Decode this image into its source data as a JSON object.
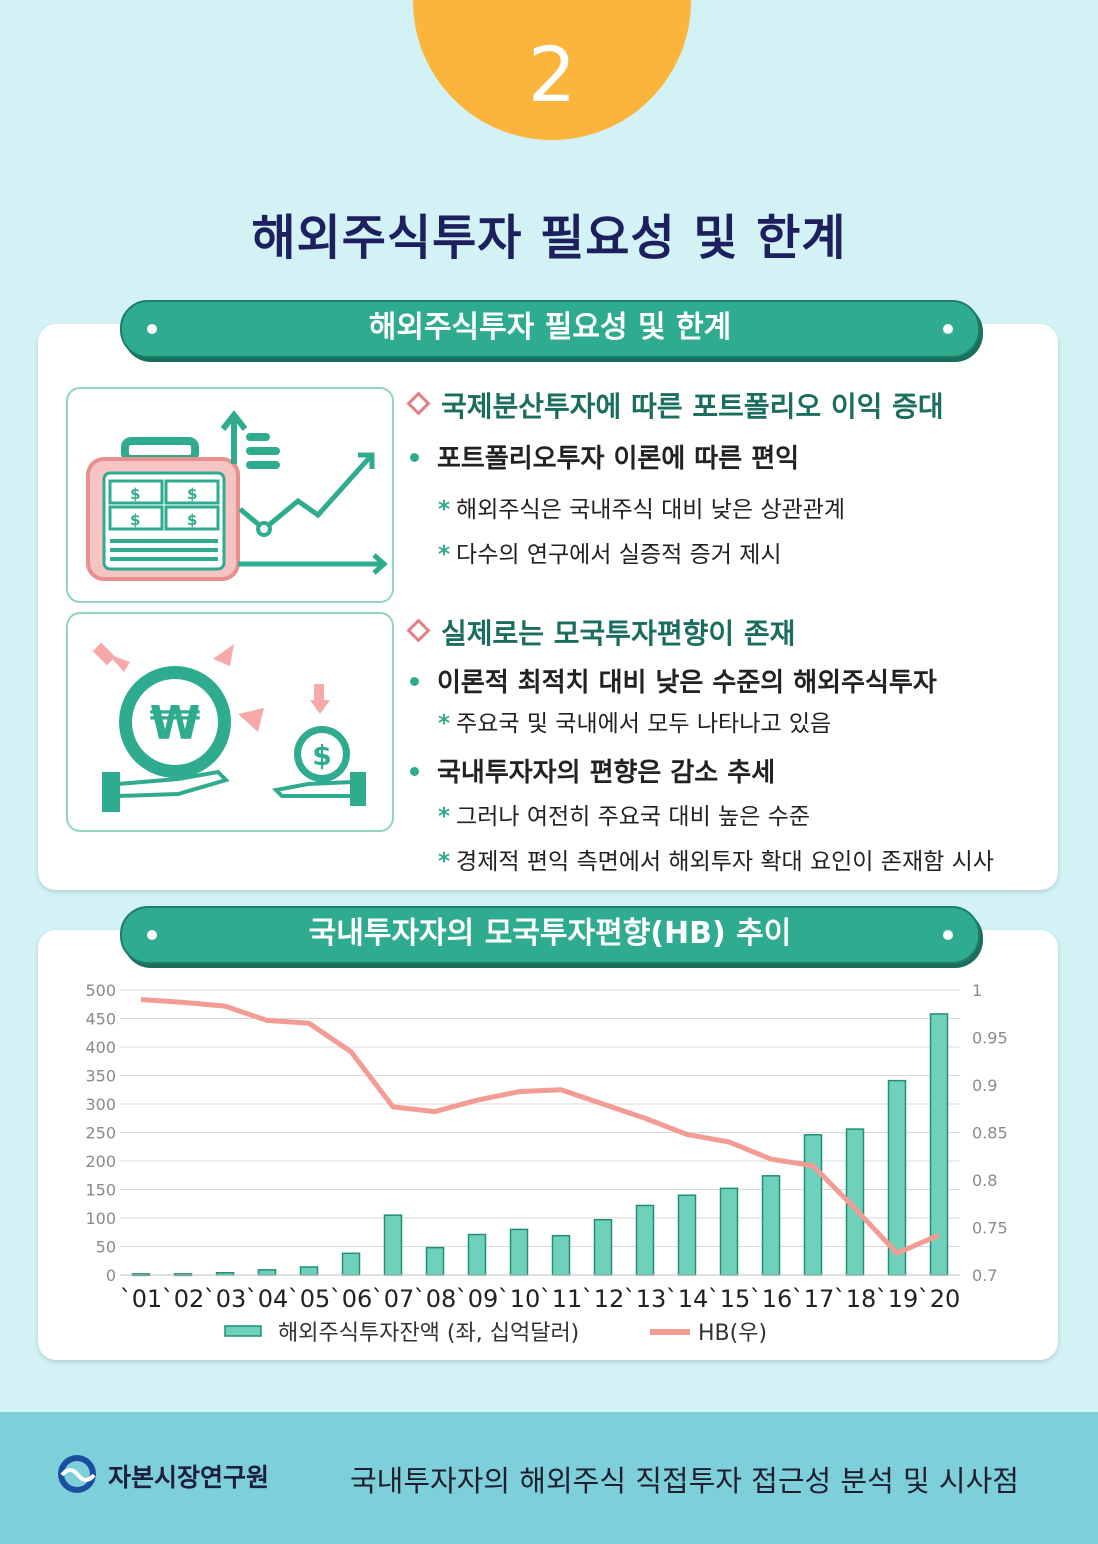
{
  "badge": {
    "number": "2"
  },
  "title": "해외주식투자 필요성 및 한계",
  "section1": {
    "ribbon": "해외주식투자 필요성 및 한계",
    "blocks": [
      {
        "heading": "국제분산투자에 따른 포트폴리오 이익 증대",
        "bullets": [
          {
            "text": "포트폴리오투자 이론에 따른 편익",
            "subs": [
              "해외주식은 국내주식 대비 낮은 상관관계",
              "다수의 연구에서 실증적 증거 제시"
            ]
          }
        ]
      },
      {
        "heading": "실제로는 모국투자편향이 존재",
        "bullets": [
          {
            "text": "이론적 최적치 대비 낮은 수준의 해외주식투자",
            "subs": [
              "주요국 및 국내에서 모두 나타나고 있음"
            ]
          },
          {
            "text": "국내투자자의 편향은 감소 추세",
            "subs": [
              "그러나 여전히 주요국 대비 높은 수준",
              "경제적 편익 측면에서 해외투자 확대 요인이 존재함 시사"
            ]
          }
        ]
      }
    ],
    "illustration_icons": {
      "top": [
        "briefcase-icon",
        "dollar-bill-icon",
        "growth-arrow-icon"
      ],
      "bottom": [
        "won-coin-icon",
        "dollar-coin-icon",
        "hand-icon"
      ],
      "won_symbol": "₩",
      "dollar_symbol": "$"
    }
  },
  "section2": {
    "ribbon": "국내투자자의 모국투자편향(HB) 추이"
  },
  "chart_data": {
    "type": "bar",
    "categories": [
      "`01",
      "`02",
      "`03",
      "`04",
      "`05",
      "`06",
      "`07",
      "`08",
      "`09",
      "`10",
      "`11",
      "`12",
      "`13",
      "`14",
      "`15",
      "`16",
      "`17",
      "`18",
      "`19",
      "`20"
    ],
    "series": [
      {
        "name": "해외주식투자잔액 (좌, 십억달러)",
        "type": "bar",
        "axis": "left",
        "color": "#6fd1bb",
        "values": [
          2,
          2,
          4,
          9,
          14,
          38,
          105,
          48,
          71,
          80,
          69,
          97,
          122,
          140,
          152,
          174,
          246,
          256,
          341,
          458
        ]
      },
      {
        "name": "HB(우)",
        "type": "line",
        "axis": "right",
        "color": "#f29c94",
        "values": [
          0.99,
          0.987,
          0.983,
          0.968,
          0.965,
          0.935,
          0.877,
          0.872,
          0.884,
          0.893,
          0.895,
          0.88,
          0.865,
          0.848,
          0.84,
          0.822,
          0.815,
          0.77,
          0.723,
          0.742
        ]
      }
    ],
    "left_axis": {
      "ticks": [
        "500",
        "450",
        "400",
        "350",
        "300",
        "250",
        "200",
        "150",
        "100",
        "50",
        "0"
      ],
      "range": [
        0,
        500
      ]
    },
    "right_axis": {
      "ticks": [
        "1",
        "0.95",
        "0.9",
        "0.85",
        "0.8",
        "0.75",
        "0.7"
      ],
      "range": [
        0.7,
        1.0
      ]
    },
    "grid": true,
    "legend_position": "bottom"
  },
  "footer": {
    "logo_text": "자본시장연구원",
    "report_title": "국내투자자의 해외주식 직접투자 접근성 분석 및 시사점"
  }
}
